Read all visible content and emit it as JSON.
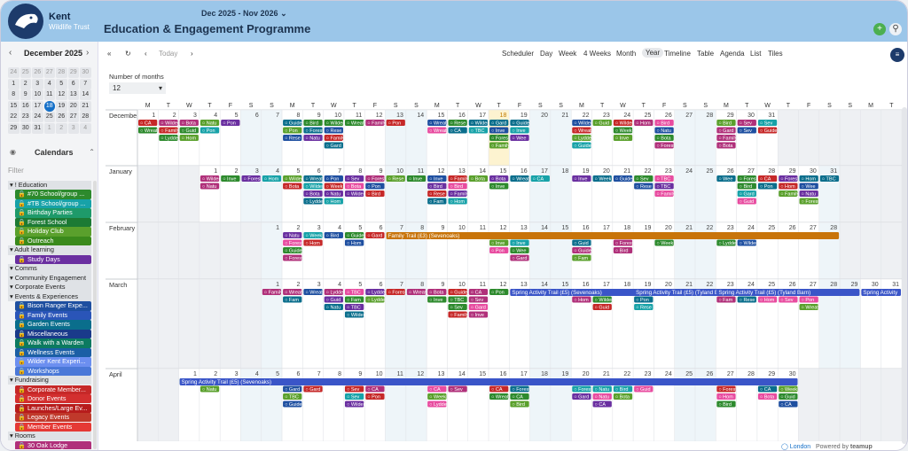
{
  "brand": {
    "logo_text_1": "Kent",
    "logo_text_2": "Wildlife Trust",
    "app_title": "Education & Engagement Programme"
  },
  "colors": {
    "header_bg": "#9bc6e9",
    "today": "#1570c8",
    "add_button": "#4caf50"
  },
  "mini_calendar": {
    "title": "December 2025",
    "days": [
      "1",
      "2",
      "3",
      "4",
      "5",
      "6",
      "7",
      "8",
      "9",
      "10",
      "11",
      "12",
      "13",
      "14",
      "15",
      "16",
      "17",
      "18",
      "19",
      "20",
      "21",
      "22",
      "23",
      "24",
      "25",
      "26",
      "27",
      "28",
      "29",
      "30",
      "31",
      "1",
      "2",
      "3",
      "4",
      "5",
      "6",
      "7",
      "8",
      "9",
      "10",
      "11"
    ],
    "lead": [
      "24",
      "25",
      "26",
      "27",
      "28",
      "29",
      "30"
    ],
    "today": "18"
  },
  "sidebar": {
    "calendars_label": "Calendars",
    "filter_placeholder": "Filter",
    "groups": [
      {
        "label": "! Education",
        "items": [
          {
            "label": "#70 School/group ...",
            "color": "#2d8a2d"
          },
          {
            "label": "#TB School/group ...",
            "color": "#17a2a8"
          },
          {
            "label": "Birthday Parties",
            "color": "#1e9a6a"
          },
          {
            "label": "Forest School",
            "color": "#1c7a34"
          },
          {
            "label": "Holiday Club",
            "color": "#5aa02c"
          },
          {
            "label": "Outreach",
            "color": "#3a8a1c"
          }
        ]
      },
      {
        "label": "Adult learning",
        "items": [
          {
            "label": "Study Days",
            "color": "#6a2fa0"
          }
        ]
      },
      {
        "label": "Comms",
        "items": []
      },
      {
        "label": "Community Engagement",
        "items": []
      },
      {
        "label": "Corporate Events",
        "items": []
      },
      {
        "label": "Events & Experiences",
        "items": [
          {
            "label": "Bison Ranger Expe...",
            "color": "#1e4fa0"
          },
          {
            "label": "Family Events",
            "color": "#2a55b8"
          },
          {
            "label": "Garden Events",
            "color": "#0a6e8c"
          },
          {
            "label": "Miscellaneous",
            "color": "#1a3a8a"
          },
          {
            "label": "Walk with a Warden",
            "color": "#0c7a60"
          },
          {
            "label": "Wellness Events",
            "color": "#1b5fa5"
          },
          {
            "label": "Wilder Kent Experi...",
            "color": "#6c8ff0"
          },
          {
            "label": "Workshops",
            "color": "#4a78d8"
          }
        ]
      },
      {
        "label": "Fundraising",
        "items": [
          {
            "label": "Corporate Member...",
            "color": "#c62828"
          },
          {
            "label": "Donor Events",
            "color": "#d32f2f"
          },
          {
            "label": "Launches/Large Ev...",
            "color": "#b71c1c"
          },
          {
            "label": "Legacy Events",
            "color": "#c0392b"
          },
          {
            "label": "Member Events",
            "color": "#e53935"
          }
        ]
      },
      {
        "label": "Rooms",
        "items": [
          {
            "label": "30 Oak Lodge",
            "color": "#b0307a"
          }
        ]
      }
    ]
  },
  "toolbar": {
    "today": "Today",
    "range": "Dec 2025 - Nov 2026",
    "views": [
      "Scheduler",
      "Day",
      "Week",
      "4 Weeks",
      "Month",
      "Year",
      "Timeline",
      "Table",
      "Agenda",
      "List",
      "Tiles"
    ],
    "selected_view": "Year",
    "months_label": "Number of months",
    "months_value": "12"
  },
  "weekday_headers": [
    "M",
    "T",
    "W",
    "T",
    "F",
    "S",
    "S",
    "M",
    "T",
    "W",
    "T",
    "F",
    "S",
    "S",
    "M",
    "T",
    "W",
    "T",
    "F",
    "S",
    "S",
    "M",
    "T",
    "W",
    "T",
    "F",
    "S",
    "S",
    "M",
    "T",
    "W",
    "T",
    "F",
    "S",
    "S",
    "M",
    "T"
  ],
  "months": [
    {
      "name": "December",
      "offset": 0,
      "days": 31
    },
    {
      "name": "January",
      "offset": 3,
      "days": 31
    },
    {
      "name": "February",
      "offset": 6,
      "days": 28
    },
    {
      "name": "March",
      "offset": 6,
      "days": 31
    },
    {
      "name": "April",
      "offset": 2,
      "days": 30
    }
  ],
  "bars": [
    {
      "month": 2,
      "from": 7,
      "to": 28,
      "label": "Family Trail (£3) (Sevenoaks)",
      "color": "#c8740a"
    },
    {
      "month": 3,
      "from": 13,
      "to": 19,
      "label": "Spring Activity Trail (£5) (Sevenoaks)",
      "color": "#3a55c8"
    },
    {
      "month": 3,
      "from": 19,
      "to": 23,
      "label": "Spring Activity Trail (£5) (Tyland Barn)",
      "color": "#3a55c8"
    },
    {
      "month": 3,
      "from": 23,
      "to": 29,
      "label": "Spring Activity Trail (£5) (Tyland Barn)",
      "color": "#3a55c8"
    },
    {
      "month": 3,
      "from": 30,
      "to": 31,
      "label": "Spring Activity",
      "color": "#3a55c8"
    },
    {
      "month": 4,
      "from": 1,
      "to": 30,
      "label": "Spring Activity Trail (£5) (Sevenoaks)",
      "color": "#3a55c8"
    }
  ],
  "sample_events": [
    "Inve",
    "Natu",
    "CA",
    "Bird",
    "Rese",
    "Guide",
    "Fam",
    "Forest",
    "Family",
    "Wreath",
    "Bota",
    "Hom",
    "Wee",
    "Gard",
    "Guid",
    "Sev",
    "Lydde",
    "Week",
    "Wilder",
    "TBC",
    "Pon"
  ],
  "footer": {
    "tz": "London",
    "powered": "Powered by",
    "vendor": "teamup"
  }
}
